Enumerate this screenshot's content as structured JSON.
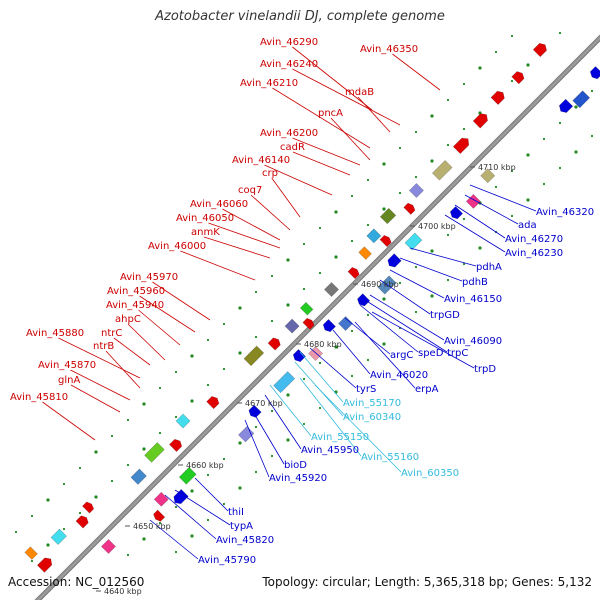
{
  "title": "Azotobacter vinelandii DJ, complete genome",
  "accession": "Accession: NC_012560",
  "topology": "Topology: circular; Length: 5,365,318 bp; Genes: 5,132",
  "colors": {
    "backbone": "#999999",
    "forward_label": "#cc0000",
    "reverse_label": "#0000cc",
    "rna_label": "#33bbdd",
    "leader": "#888888"
  },
  "ticks": [
    {
      "text": "4640 kbp"
    },
    {
      "text": "4650 kbp"
    },
    {
      "text": "4660 kbp"
    },
    {
      "text": "4670 kbp"
    },
    {
      "text": "4680 kbp"
    },
    {
      "text": "4690 kbp"
    },
    {
      "text": "4700 kbp"
    },
    {
      "text": "4710 kbp"
    }
  ],
  "forward_labels": [
    {
      "text": "Avin_46290"
    },
    {
      "text": "Avin_46350"
    },
    {
      "text": "Avin_46240"
    },
    {
      "text": "Avin_46210"
    },
    {
      "text": "mdaB"
    },
    {
      "text": "pncA"
    },
    {
      "text": "Avin_46200"
    },
    {
      "text": "cadR"
    },
    {
      "text": "Avin_46140"
    },
    {
      "text": "crp"
    },
    {
      "text": "coq7"
    },
    {
      "text": "Avin_46060"
    },
    {
      "text": "Avin_46050"
    },
    {
      "text": "anmK"
    },
    {
      "text": "Avin_46000"
    },
    {
      "text": "Avin_45970"
    },
    {
      "text": "Avin_45960"
    },
    {
      "text": "Avin_45940"
    },
    {
      "text": "ahpC"
    },
    {
      "text": "ntrC"
    },
    {
      "text": "Avin_45880"
    },
    {
      "text": "ntrB"
    },
    {
      "text": "Avin_45870"
    },
    {
      "text": "glnA"
    },
    {
      "text": "Avin_45810"
    }
  ],
  "reverse_labels": [
    {
      "text": "4710 kbp"
    },
    {
      "text": "Avin_46320"
    },
    {
      "text": "ada"
    },
    {
      "text": "Avin_46270"
    },
    {
      "text": "Avin_46230"
    },
    {
      "text": "pdhA"
    },
    {
      "text": "pdhB"
    },
    {
      "text": "Avin_46150"
    },
    {
      "text": "trpGD"
    },
    {
      "text": "Avin_46090"
    },
    {
      "text": "speD"
    },
    {
      "text": "trpC"
    },
    {
      "text": "argC"
    },
    {
      "text": "trpD"
    },
    {
      "text": "Avin_46020"
    },
    {
      "text": "erpA"
    },
    {
      "text": "tyrS"
    },
    {
      "text": "Avin_55170"
    },
    {
      "text": "Avin_60340"
    },
    {
      "text": "Avin_55150"
    },
    {
      "text": "Avin_45950"
    },
    {
      "text": "Avin_55160"
    },
    {
      "text": "Avin_60350"
    },
    {
      "text": "bioD"
    },
    {
      "text": "Avin_45920"
    },
    {
      "text": "thiI"
    },
    {
      "text": "typA"
    },
    {
      "text": "Avin_45820"
    },
    {
      "text": "Avin_45790"
    }
  ]
}
